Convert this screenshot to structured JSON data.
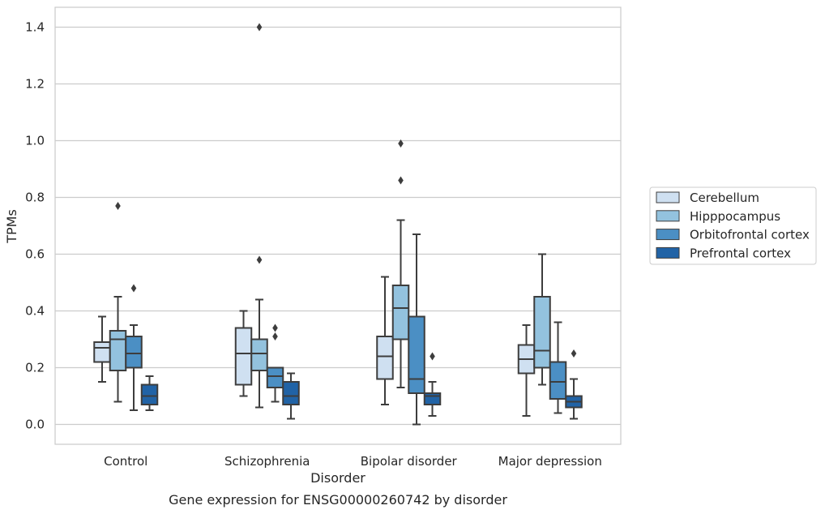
{
  "chart_data": {
    "type": "box",
    "title": "",
    "caption": "Gene expression for ENSG00000260742 by disorder",
    "xlabel": "Disorder",
    "ylabel": "TPMs",
    "ylim": [
      -0.07,
      1.47
    ],
    "yticks": [
      0.0,
      0.2,
      0.4,
      0.6,
      0.8,
      1.0,
      1.2,
      1.4
    ],
    "ytick_labels": [
      "0.0",
      "0.2",
      "0.4",
      "0.6",
      "0.8",
      "1.0",
      "1.2",
      "1.4"
    ],
    "categories": [
      "Control",
      "Schizophrenia",
      "Bipolar disorder",
      "Major depression"
    ],
    "grid": "horizontal",
    "legend_position": "right",
    "series": [
      {
        "name": "Cerebellum",
        "color": "#cfe0f1",
        "boxes": [
          {
            "whisker_low": 0.15,
            "q1": 0.22,
            "median": 0.27,
            "q3": 0.29,
            "whisker_high": 0.38,
            "outliers": []
          },
          {
            "whisker_low": 0.1,
            "q1": 0.14,
            "median": 0.25,
            "q3": 0.34,
            "whisker_high": 0.4,
            "outliers": []
          },
          {
            "whisker_low": 0.07,
            "q1": 0.16,
            "median": 0.24,
            "q3": 0.31,
            "whisker_high": 0.52,
            "outliers": []
          },
          {
            "whisker_low": 0.03,
            "q1": 0.18,
            "median": 0.23,
            "q3": 0.28,
            "whisker_high": 0.35,
            "outliers": []
          }
        ]
      },
      {
        "name": "Hipppocampus",
        "color": "#93c2de",
        "boxes": [
          {
            "whisker_low": 0.08,
            "q1": 0.19,
            "median": 0.3,
            "q3": 0.33,
            "whisker_high": 0.45,
            "outliers": [
              0.77
            ]
          },
          {
            "whisker_low": 0.06,
            "q1": 0.19,
            "median": 0.25,
            "q3": 0.3,
            "whisker_high": 0.44,
            "outliers": [
              0.58,
              1.4
            ]
          },
          {
            "whisker_low": 0.13,
            "q1": 0.3,
            "median": 0.41,
            "q3": 0.49,
            "whisker_high": 0.72,
            "outliers": [
              0.86,
              0.99
            ]
          },
          {
            "whisker_low": 0.14,
            "q1": 0.2,
            "median": 0.26,
            "q3": 0.45,
            "whisker_high": 0.6,
            "outliers": []
          }
        ]
      },
      {
        "name": "Orbitofrontal cortex",
        "color": "#4b8fc4",
        "boxes": [
          {
            "whisker_low": 0.05,
            "q1": 0.2,
            "median": 0.25,
            "q3": 0.31,
            "whisker_high": 0.35,
            "outliers": [
              0.48
            ]
          },
          {
            "whisker_low": 0.08,
            "q1": 0.13,
            "median": 0.17,
            "q3": 0.2,
            "whisker_high": 0.2,
            "outliers": [
              0.31,
              0.34
            ]
          },
          {
            "whisker_low": 0.0,
            "q1": 0.11,
            "median": 0.16,
            "q3": 0.38,
            "whisker_high": 0.67,
            "outliers": []
          },
          {
            "whisker_low": 0.04,
            "q1": 0.09,
            "median": 0.15,
            "q3": 0.22,
            "whisker_high": 0.36,
            "outliers": []
          }
        ]
      },
      {
        "name": "Prefrontal cortex",
        "color": "#2163a6",
        "boxes": [
          {
            "whisker_low": 0.05,
            "q1": 0.07,
            "median": 0.1,
            "q3": 0.14,
            "whisker_high": 0.17,
            "outliers": []
          },
          {
            "whisker_low": 0.02,
            "q1": 0.07,
            "median": 0.1,
            "q3": 0.15,
            "whisker_high": 0.18,
            "outliers": []
          },
          {
            "whisker_low": 0.03,
            "q1": 0.07,
            "median": 0.1,
            "q3": 0.11,
            "whisker_high": 0.15,
            "outliers": [
              0.24
            ]
          },
          {
            "whisker_low": 0.02,
            "q1": 0.06,
            "median": 0.08,
            "q3": 0.1,
            "whisker_high": 0.16,
            "outliers": [
              0.25
            ]
          }
        ]
      }
    ],
    "legend": [
      "Cerebellum",
      "Hipppocampus",
      "Orbitofrontal cortex",
      "Prefrontal cortex"
    ]
  }
}
